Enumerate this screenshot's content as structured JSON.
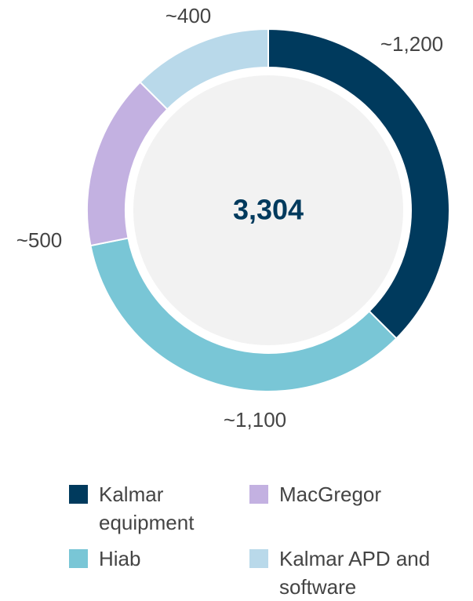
{
  "chart_data": {
    "type": "donut",
    "categories": [
      "Kalmar equipment",
      "Hiab",
      "MacGregor",
      "Kalmar APD and software"
    ],
    "values": [
      1200,
      1100,
      500,
      400
    ],
    "value_labels": [
      "~1,200",
      "~1,100",
      "~500",
      "~400"
    ],
    "colors": [
      "#003a5d",
      "#79c6d6",
      "#c3b1e1",
      "#b9d9ea"
    ],
    "center_label": "3,304",
    "legend": "bottom"
  }
}
